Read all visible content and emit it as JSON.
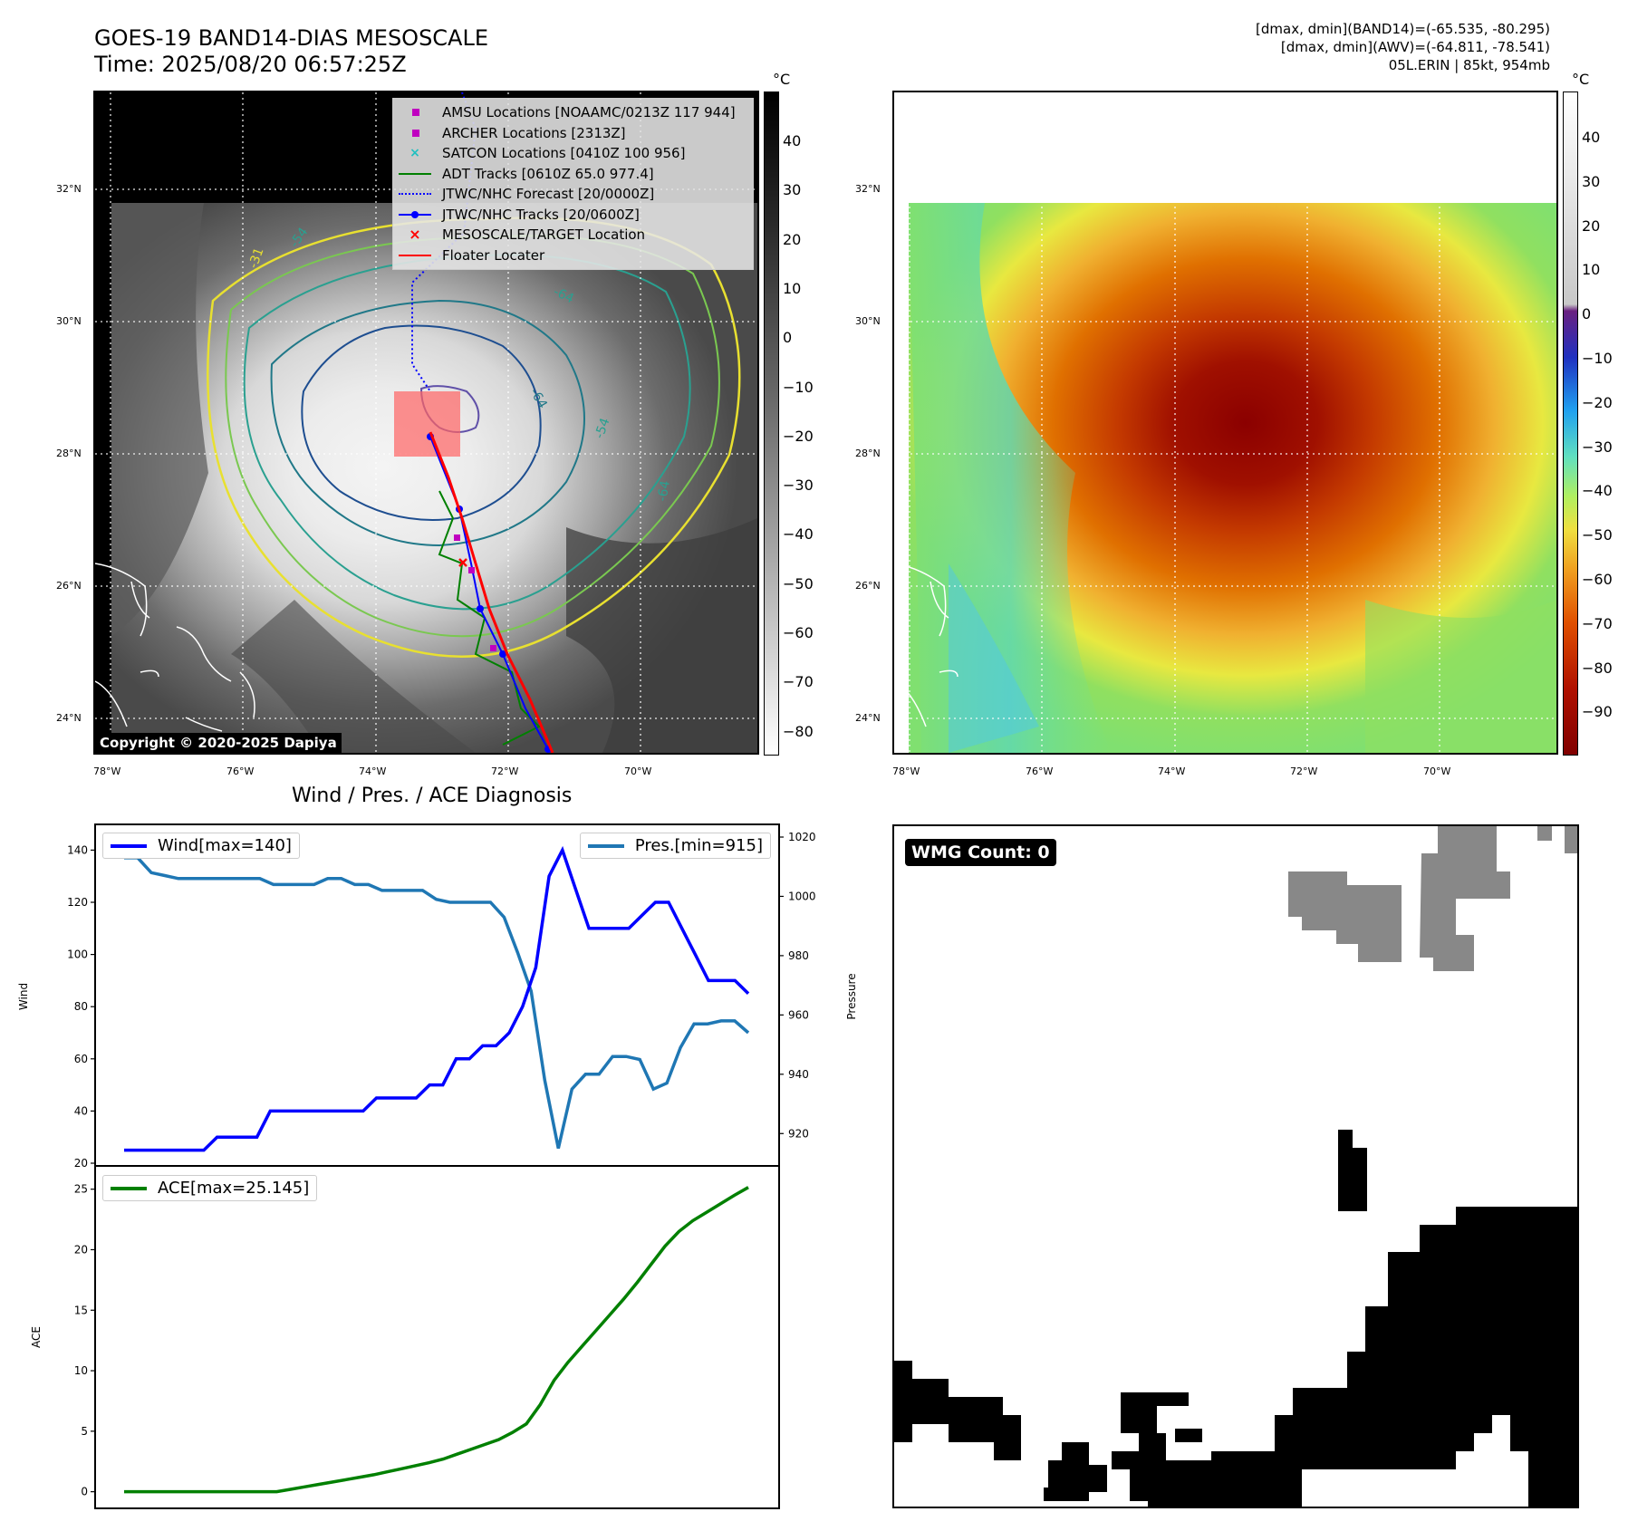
{
  "header": {
    "title_line1": "GOES-19 BAND14-DIAS MESOSCALE",
    "title_line2": "Time: 2025/08/20 06:57:25Z",
    "info_line1": "[dmax, dmin](BAND14)=(-65.535, -80.295)",
    "info_line2": "[dmax, dmin](AWV)=(-64.811, -78.541)",
    "info_line3": "05L.ERIN | 85kt, 954mb"
  },
  "map_axes": {
    "lon_labels": [
      "78°W",
      "76°W",
      "74°W",
      "72°W",
      "70°W"
    ],
    "lat_labels": [
      "32°N",
      "30°N",
      "28°N",
      "26°N",
      "24°N"
    ]
  },
  "legend": {
    "items": [
      {
        "label": "AMSU Locations [NOAAMC/0213Z 117 944]",
        "color": "#c000c0",
        "kind": "square"
      },
      {
        "label": "ARCHER Locations [2313Z]",
        "color": "#c000c0",
        "kind": "square"
      },
      {
        "label": "SATCON Locations [0410Z 100 956]",
        "color": "#20c0c0",
        "kind": "x"
      },
      {
        "label": "ADT Tracks [0610Z 65.0 977.4]",
        "color": "#008000",
        "kind": "line"
      },
      {
        "label": "JTWC/NHC Forecast [20/0000Z]",
        "color": "#0000ff",
        "kind": "dotted"
      },
      {
        "label": "JTWC/NHC Tracks [20/0600Z]",
        "color": "#0000ff",
        "kind": "linedot"
      },
      {
        "label": "MESOSCALE/TARGET Location",
        "color": "#ff0000",
        "kind": "redx"
      },
      {
        "label": "Floater Locater",
        "color": "#ff0000",
        "kind": "line"
      }
    ]
  },
  "copyright": "Copyright © 2020-2025 Dapiya",
  "colorbar_left": {
    "unit": "°C",
    "ticks": [
      "40",
      "30",
      "20",
      "10",
      "0",
      "−10",
      "−20",
      "−30",
      "−40",
      "−50",
      "−60",
      "−70",
      "−80"
    ]
  },
  "colorbar_right": {
    "unit": "°C",
    "ticks": [
      "40",
      "30",
      "20",
      "10",
      "0",
      "−10",
      "−20",
      "−30",
      "−40",
      "−50",
      "−60",
      "−70",
      "−80",
      "−90"
    ]
  },
  "contour_labels": [
    "-54",
    "-31",
    "-64",
    "-64",
    "-54",
    "-64"
  ],
  "diag": {
    "title": "Wind / Pres. / ACE Diagnosis",
    "wind_ylabel": "Wind",
    "pres_ylabel": "Pressure",
    "ace_ylabel": "ACE",
    "wind_legend": "Wind[max=140]",
    "pres_legend": "Pres.[min=915]",
    "ace_legend": "ACE[max=25.145]"
  },
  "wmg": {
    "label": "WMG Count: 0"
  },
  "chart_data": [
    {
      "type": "line",
      "title": "Wind / Pres. / ACE Diagnosis",
      "ylabel": "Wind",
      "ylim": [
        20,
        145
      ],
      "yticks": [
        "140",
        "120",
        "100",
        "80",
        "60",
        "40",
        "20"
      ],
      "series": [
        {
          "name": "Wind[max=140]",
          "color": "#0000ff",
          "values": [
            25,
            25,
            25,
            25,
            25,
            25,
            25,
            30,
            30,
            30,
            30,
            40,
            40,
            40,
            40,
            40,
            40,
            40,
            40,
            45,
            45,
            45,
            45,
            50,
            50,
            60,
            60,
            65,
            65,
            70,
            80,
            95,
            130,
            140,
            125,
            110,
            110,
            110,
            110,
            115,
            120,
            120,
            110,
            100,
            90,
            90,
            90,
            85
          ]
        }
      ]
    },
    {
      "type": "line",
      "ylabel": "Pressure",
      "ylim": [
        910,
        1020
      ],
      "yticks": [
        "1020",
        "1000",
        "980",
        "960",
        "940",
        "920"
      ],
      "series": [
        {
          "name": "Pres.[min=915]",
          "color": "#1f77b4",
          "values": [
            1013,
            1013,
            1008,
            1007,
            1006,
            1006,
            1006,
            1006,
            1006,
            1006,
            1006,
            1004,
            1004,
            1004,
            1004,
            1006,
            1006,
            1004,
            1004,
            1002,
            1002,
            1002,
            1002,
            999,
            998,
            998,
            998,
            998,
            993,
            981,
            968,
            938,
            915,
            935,
            940,
            940,
            946,
            946,
            945,
            935,
            937,
            949,
            957,
            957,
            958,
            958,
            954
          ]
        }
      ]
    },
    {
      "type": "line",
      "ylabel": "ACE",
      "ylim": [
        -1,
        25.8
      ],
      "yticks": [
        "25",
        "20",
        "15",
        "10",
        "5",
        "0"
      ],
      "series": [
        {
          "name": "ACE[max=25.145]",
          "color": "#008000",
          "values": [
            0,
            0,
            0,
            0,
            0,
            0,
            0,
            0,
            0,
            0,
            0,
            0,
            0.2,
            0.4,
            0.6,
            0.8,
            1.0,
            1.2,
            1.4,
            1.65,
            1.9,
            2.15,
            2.4,
            2.7,
            3.1,
            3.5,
            3.9,
            4.3,
            4.9,
            5.6,
            7.2,
            9.2,
            10.7,
            12.0,
            13.3,
            14.6,
            15.9,
            17.3,
            18.8,
            20.3,
            21.5,
            22.4,
            23.1,
            23.8,
            24.5,
            25.145
          ]
        }
      ]
    }
  ]
}
